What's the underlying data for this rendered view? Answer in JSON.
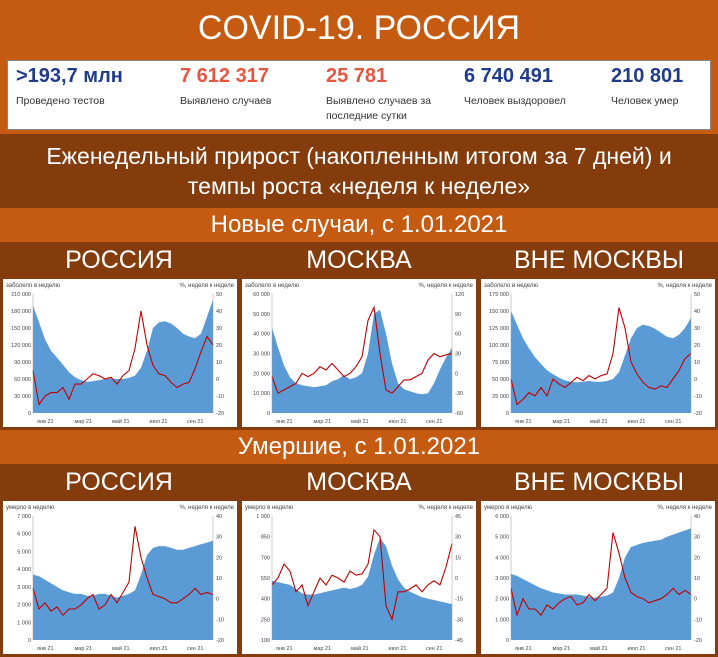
{
  "title": "COVID-19. РОССИЯ",
  "stats": [
    {
      "value": ">193,7 млн",
      "label": "Проведено тестов",
      "color": "#1f3b8a"
    },
    {
      "value": "7 612 317",
      "label": "Выявлено случаев",
      "color": "#e8563f"
    },
    {
      "value": "25 781",
      "label": "Выявлено случаев за последние сутки",
      "color": "#e8563f"
    },
    {
      "value": "6 740 491",
      "label": "Человек выздоровел",
      "color": "#1f3b8a"
    },
    {
      "value": "210 801",
      "label": "Человек умер",
      "color": "#1f3b8a"
    }
  ],
  "subtitle": "Еженедельный прирост (накопленным итогом за 7 дней) и темпы роста «неделя к неделе»",
  "section_cases": "Новые случаи, с 1.01.2021",
  "section_deaths": "Умершие, с 1.01.2021",
  "panel_titles": [
    "РОССИЯ",
    "МОСКВА",
    "ВНЕ МОСКВЫ"
  ],
  "colors": {
    "orange": "#c55a11",
    "brown": "#843c0c",
    "area": "#5b9bd5",
    "line": "#c00000"
  },
  "chart_data": [
    {
      "type": "area",
      "region": "РОССИЯ",
      "metric": "cases",
      "left_label": "заболело в неделю",
      "right_label": "%, неделя к неделе",
      "left_ticks": [
        "210 000",
        "180 000",
        "150 000",
        "120 000",
        "90 000",
        "60 000",
        "30 000",
        "0"
      ],
      "right_ticks": [
        "50",
        "40",
        "30",
        "20",
        "10",
        "0",
        "-10",
        "-20"
      ],
      "x_ticks": [
        "янв 21",
        "мар 21",
        "май 21",
        "июл 21",
        "сен 21"
      ],
      "ylim": [
        0,
        210000
      ],
      "y2lim": [
        -20,
        50
      ],
      "area_values": [
        190000,
        160000,
        130000,
        110000,
        98000,
        85000,
        72000,
        63000,
        58000,
        55000,
        56000,
        58000,
        60000,
        61000,
        60000,
        60000,
        62000,
        66000,
        80000,
        110000,
        150000,
        160000,
        162000,
        158000,
        150000,
        140000,
        135000,
        132000,
        140000,
        170000,
        200000
      ],
      "line_values": [
        5,
        -15,
        -10,
        -8,
        -8,
        -5,
        -12,
        -3,
        -3,
        0,
        3,
        2,
        0,
        1,
        -3,
        2,
        5,
        18,
        40,
        20,
        8,
        3,
        2,
        -2,
        -5,
        -3,
        -2,
        6,
        16,
        25,
        20
      ]
    },
    {
      "type": "area",
      "region": "МОСКВА",
      "metric": "cases",
      "left_label": "заболело в неделю",
      "right_label": "%, неделя к неделе",
      "left_ticks": [
        "60 000",
        "50 000",
        "40 000",
        "30 000",
        "20 000",
        "10 000",
        "0"
      ],
      "right_ticks": [
        "120",
        "90",
        "60",
        "30",
        "0",
        "-30",
        "-60"
      ],
      "x_ticks": [
        "янв 21",
        "мар 21",
        "май 21",
        "июл 21",
        "сен 21"
      ],
      "ylim": [
        0,
        60000
      ],
      "y2lim": [
        -60,
        120
      ],
      "area_values": [
        43000,
        33000,
        24000,
        18000,
        15000,
        14000,
        13500,
        13000,
        13500,
        14000,
        16000,
        17000,
        19000,
        17000,
        18000,
        20000,
        30000,
        50000,
        52000,
        40000,
        25000,
        15000,
        12000,
        11000,
        10000,
        9500,
        10000,
        15000,
        22000,
        28000,
        33000
      ],
      "line_values": [
        -5,
        -30,
        -25,
        -20,
        -15,
        0,
        -5,
        0,
        10,
        5,
        15,
        5,
        -5,
        0,
        10,
        25,
        80,
        100,
        30,
        -25,
        -30,
        -20,
        -10,
        -10,
        -5,
        0,
        20,
        30,
        25,
        28,
        30
      ]
    },
    {
      "type": "area",
      "region": "ВНЕ МОСКВЫ",
      "metric": "cases",
      "left_label": "заболело в неделю",
      "right_label": "%, неделя к неделе",
      "left_ticks": [
        "175 000",
        "150 000",
        "125 000",
        "100 000",
        "75 000",
        "50 000",
        "25 000",
        "0"
      ],
      "right_ticks": [
        "50",
        "40",
        "30",
        "20",
        "10",
        "0",
        "-10",
        "-20"
      ],
      "x_ticks": [
        "янв 21",
        "мар 21",
        "май 21",
        "июл 21",
        "сен 21"
      ],
      "ylim": [
        0,
        175000
      ],
      "y2lim": [
        -20,
        50
      ],
      "area_values": [
        150000,
        130000,
        110000,
        95000,
        82000,
        72000,
        63000,
        57000,
        52000,
        48000,
        46000,
        45000,
        46000,
        47000,
        46000,
        46000,
        47000,
        50000,
        60000,
        85000,
        110000,
        125000,
        130000,
        128000,
        124000,
        118000,
        112000,
        110000,
        115000,
        125000,
        140000
      ],
      "line_values": [
        0,
        -15,
        -12,
        -8,
        -10,
        -5,
        -10,
        0,
        -3,
        -5,
        -2,
        1,
        -1,
        2,
        0,
        2,
        3,
        15,
        42,
        30,
        10,
        3,
        -2,
        -5,
        -6,
        -4,
        -5,
        0,
        5,
        12,
        15
      ]
    },
    {
      "type": "area",
      "region": "РОССИЯ",
      "metric": "deaths",
      "left_label": "умерло в неделю",
      "right_label": "%, неделя к неделе",
      "left_ticks": [
        "7 000",
        "6 000",
        "5 000",
        "4 000",
        "3 000",
        "2 000",
        "1 000",
        "0"
      ],
      "right_ticks": [
        "40",
        "30",
        "20",
        "10",
        "0",
        "-10",
        "-20"
      ],
      "x_ticks": [
        "янв 21",
        "мар 21",
        "май 21",
        "июл 21",
        "сен 21"
      ],
      "ylim": [
        0,
        7000
      ],
      "y2lim": [
        -20,
        40
      ],
      "area_values": [
        3700,
        3600,
        3400,
        3200,
        3000,
        2800,
        2700,
        2600,
        2600,
        2500,
        2500,
        2600,
        2600,
        2500,
        2400,
        2500,
        2600,
        2800,
        3700,
        4800,
        5200,
        5300,
        5300,
        5200,
        5100,
        5100,
        5200,
        5300,
        5400,
        5500,
        5600
      ],
      "line_values": [
        5,
        -5,
        -2,
        -6,
        -4,
        -8,
        -5,
        -5,
        -3,
        0,
        2,
        -5,
        -3,
        2,
        -2,
        3,
        8,
        35,
        20,
        10,
        2,
        1,
        0,
        -2,
        -2,
        0,
        2,
        5,
        2,
        3,
        2
      ]
    },
    {
      "type": "area",
      "region": "МОСКВА",
      "metric": "deaths",
      "left_label": "умерло в неделю",
      "right_label": "%, неделя к неделе",
      "left_ticks": [
        "1 000",
        "850",
        "700",
        "550",
        "400",
        "250",
        "100"
      ],
      "right_ticks": [
        "45",
        "30",
        "15",
        "0",
        "-15",
        "-30",
        "-45"
      ],
      "x_ticks": [
        "янв 21",
        "мар 21",
        "май 21",
        "июл 21",
        "сен 21"
      ],
      "ylim": [
        100,
        1000
      ],
      "y2lim": [
        -45,
        45
      ],
      "area_values": [
        530,
        520,
        510,
        500,
        470,
        440,
        430,
        430,
        440,
        450,
        460,
        470,
        480,
        470,
        480,
        500,
        560,
        720,
        840,
        780,
        640,
        540,
        480,
        450,
        430,
        410,
        400,
        390,
        380,
        370,
        360
      ],
      "line_values": [
        -5,
        0,
        10,
        5,
        -10,
        -5,
        -20,
        -10,
        0,
        -5,
        2,
        0,
        -3,
        5,
        2,
        3,
        10,
        35,
        30,
        -20,
        -30,
        -10,
        -10,
        -8,
        -5,
        -10,
        -5,
        -2,
        -5,
        8,
        25
      ]
    },
    {
      "type": "area",
      "region": "ВНЕ МОСКВЫ",
      "metric": "deaths",
      "left_label": "умерло в неделю",
      "right_label": "%, неделя к неделе",
      "left_ticks": [
        "6 000",
        "5 000",
        "4 000",
        "3 000",
        "2 000",
        "1 000",
        "0"
      ],
      "right_ticks": [
        "40",
        "30",
        "20",
        "10",
        "0",
        "-10",
        "-20"
      ],
      "x_ticks": [
        "янв 21",
        "мар 21",
        "май 21",
        "июл 21",
        "сен 21"
      ],
      "ylim": [
        0,
        6000
      ],
      "y2lim": [
        -20,
        40
      ],
      "area_values": [
        3200,
        3100,
        2950,
        2800,
        2650,
        2500,
        2400,
        2300,
        2250,
        2200,
        2200,
        2200,
        2150,
        2100,
        2050,
        2100,
        2150,
        2300,
        3000,
        4000,
        4500,
        4600,
        4700,
        4750,
        4800,
        4850,
        5000,
        5100,
        5200,
        5300,
        5400
      ],
      "line_values": [
        5,
        -8,
        0,
        -5,
        -5,
        -8,
        -3,
        -5,
        -2,
        0,
        1,
        -3,
        -2,
        2,
        -1,
        2,
        5,
        32,
        22,
        10,
        3,
        1,
        0,
        -2,
        -1,
        0,
        2,
        5,
        2,
        4,
        2
      ]
    }
  ]
}
